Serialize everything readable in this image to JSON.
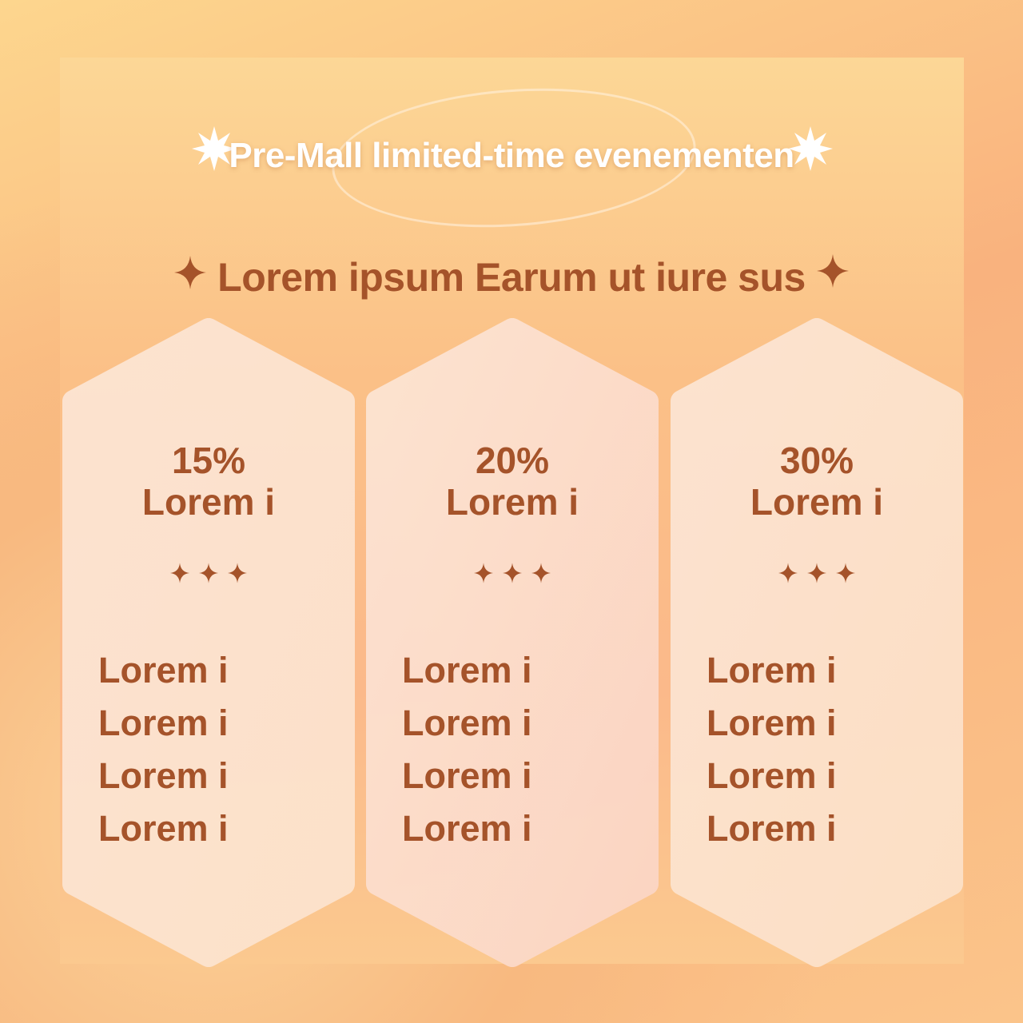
{
  "title": "Pre-Mall limited-time evenementen",
  "subtitle": "Lorem ipsum Earum ut iure sus",
  "colors": {
    "text": "#a5532a",
    "card": "#fde3d3",
    "title": "#ffffff"
  },
  "icons": {
    "title_decor": "starburst-icon",
    "subtitle_decor": "sparkle-icon",
    "divider": "three-sparkles-icon"
  },
  "cards": [
    {
      "percent": "15%",
      "label": "Lorem i",
      "items": [
        "Lorem i",
        "Lorem i",
        "Lorem i",
        "Lorem i"
      ]
    },
    {
      "percent": "20%",
      "label": "Lorem i",
      "items": [
        "Lorem i",
        "Lorem i",
        "Lorem i",
        "Lorem i"
      ]
    },
    {
      "percent": "30%",
      "label": "Lorem i",
      "items": [
        "Lorem i",
        "Lorem i",
        "Lorem i",
        "Lorem i"
      ]
    }
  ]
}
